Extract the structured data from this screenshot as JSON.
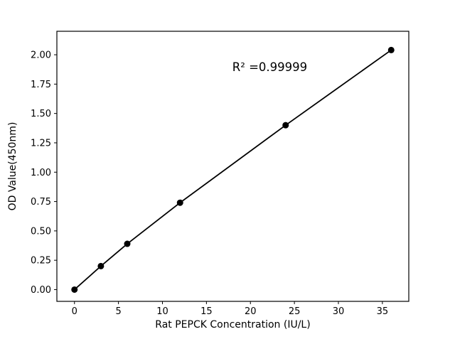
{
  "chart_data": {
    "type": "line",
    "x": [
      0,
      3,
      6,
      12,
      24,
      36
    ],
    "y": [
      0.0,
      0.2,
      0.39,
      0.74,
      1.4,
      2.04
    ],
    "title": "",
    "xlabel": "Rat PEPCK Concentration (IU/L)",
    "ylabel": "OD Value(450nm)",
    "xlim": [
      -2,
      38
    ],
    "ylim": [
      -0.1,
      2.2
    ],
    "xticks": [
      0,
      5,
      10,
      15,
      20,
      25,
      30,
      35
    ],
    "yticks": [
      0.0,
      0.25,
      0.5,
      0.75,
      1.0,
      1.25,
      1.5,
      1.75,
      2.0
    ],
    "grid": false,
    "legend": null,
    "line_color": "#000000",
    "marker_color": "#000000",
    "background_color": "#ffffff",
    "annotation": {
      "text": "R² =0.99999",
      "x": 22.2,
      "y": 1.86
    }
  }
}
